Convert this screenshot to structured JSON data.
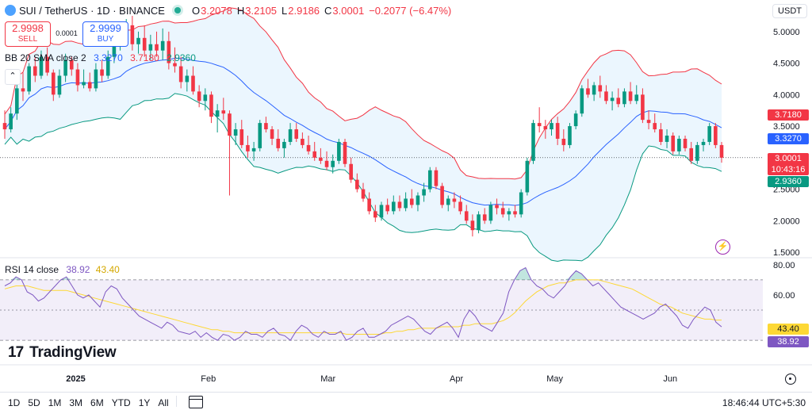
{
  "header": {
    "symbol": "SUI / TetherUS · 1D · BINANCE",
    "open_label": "O",
    "open": "3.2078",
    "high_label": "H",
    "high": "3.2105",
    "low_label": "L",
    "low": "2.9186",
    "close_label": "C",
    "close": "3.0001",
    "change": "−0.2077 (−6.47%)"
  },
  "trade": {
    "sell_price": "2.9998",
    "sell_label": "SELL",
    "buy_price": "2.9999",
    "buy_label": "BUY",
    "spread": "0.0001"
  },
  "indicator": {
    "name": "BB 20 SMA close 2",
    "basis": "3.3270",
    "upper": "3.7180",
    "lower": "2.9360"
  },
  "rsi_legend": {
    "name": "RSI 14 close",
    "value": "38.92",
    "ma": "43.40"
  },
  "currency": "USDT",
  "price_tags": {
    "upper": "3.7180",
    "basis": "3.3270",
    "last": "3.0001",
    "countdown": "10:43:16",
    "lower": "2.9360"
  },
  "rsi_tags": {
    "ma": "43.40",
    "value": "38.92"
  },
  "logo": "TradingView",
  "ranges": [
    "1D",
    "5D",
    "1M",
    "3M",
    "6M",
    "YTD",
    "1Y",
    "All"
  ],
  "clock": "18:46:44 UTC+5:30",
  "colors": {
    "up": "#089981",
    "down": "#f23645",
    "basis": "#2962ff",
    "band_upper": "#f23645",
    "band_lower": "#089981",
    "band_fill": "#e3f2fd",
    "rsi": "#7e57c2",
    "rsi_ma": "#fdd835"
  },
  "chart_data": [
    {
      "type": "candlestick",
      "title": "",
      "x_ticks": [
        "2025",
        "Feb",
        "Mar",
        "Apr",
        "May",
        "Jun"
      ],
      "y_ticks": [
        "1.5000",
        "2.0000",
        "2.5000",
        "3.0000",
        "3.5000",
        "4.0000",
        "4.5000",
        "5.0000"
      ],
      "ylim": [
        1.45,
        5.25
      ],
      "ohlc": [
        [
          3.55,
          3.75,
          3.3,
          3.45
        ],
        [
          3.45,
          3.8,
          3.4,
          3.7
        ],
        [
          3.7,
          4.2,
          3.6,
          4.1
        ],
        [
          4.1,
          4.35,
          3.9,
          4.05
        ],
        [
          4.05,
          4.5,
          4.0,
          4.45
        ],
        [
          4.45,
          4.6,
          4.2,
          4.3
        ],
        [
          4.3,
          4.7,
          4.25,
          4.6
        ],
        [
          4.6,
          4.75,
          4.3,
          4.35
        ],
        [
          4.35,
          4.4,
          3.9,
          4.0
        ],
        [
          4.0,
          4.4,
          3.95,
          4.3
        ],
        [
          4.3,
          4.65,
          4.2,
          4.55
        ],
        [
          4.55,
          4.6,
          4.3,
          4.4
        ],
        [
          4.4,
          4.5,
          4.05,
          4.15
        ],
        [
          4.15,
          4.4,
          4.1,
          4.2
        ],
        [
          4.2,
          4.35,
          4.05,
          4.1
        ],
        [
          4.1,
          4.5,
          4.05,
          4.4
        ],
        [
          4.4,
          4.55,
          4.2,
          4.3
        ],
        [
          4.3,
          4.7,
          4.25,
          4.6
        ],
        [
          4.6,
          4.9,
          4.5,
          4.8
        ],
        [
          4.8,
          5.05,
          4.7,
          4.95
        ],
        [
          4.95,
          5.2,
          4.8,
          5.1
        ],
        [
          5.1,
          5.25,
          4.7,
          4.8
        ],
        [
          4.8,
          5.0,
          4.65,
          4.9
        ],
        [
          4.9,
          5.1,
          4.6,
          4.7
        ],
        [
          4.7,
          4.95,
          4.55,
          4.8
        ],
        [
          4.8,
          5.0,
          4.6,
          4.7
        ],
        [
          4.7,
          5.05,
          4.55,
          4.85
        ],
        [
          4.85,
          5.0,
          4.4,
          4.5
        ],
        [
          4.5,
          4.75,
          4.35,
          4.45
        ],
        [
          4.45,
          4.6,
          4.1,
          4.2
        ],
        [
          4.2,
          4.4,
          4.05,
          4.3
        ],
        [
          4.3,
          4.45,
          4.0,
          4.05
        ],
        [
          4.05,
          4.15,
          3.8,
          3.9
        ],
        [
          3.9,
          4.1,
          3.75,
          4.0
        ],
        [
          4.0,
          4.05,
          3.55,
          3.65
        ],
        [
          3.65,
          3.85,
          3.4,
          3.75
        ],
        [
          3.75,
          3.95,
          3.6,
          3.7
        ],
        [
          3.7,
          3.75,
          2.4,
          3.35
        ],
        [
          3.35,
          3.55,
          3.2,
          3.45
        ],
        [
          3.45,
          3.6,
          3.15,
          3.2
        ],
        [
          3.2,
          3.35,
          3.0,
          3.1
        ],
        [
          3.1,
          3.25,
          2.95,
          3.15
        ],
        [
          3.15,
          3.6,
          3.1,
          3.55
        ],
        [
          3.55,
          3.65,
          3.4,
          3.45
        ],
        [
          3.45,
          3.5,
          3.2,
          3.3
        ],
        [
          3.3,
          3.45,
          3.1,
          3.15
        ],
        [
          3.15,
          3.3,
          3.0,
          3.25
        ],
        [
          3.25,
          3.55,
          3.2,
          3.45
        ],
        [
          3.45,
          3.55,
          3.25,
          3.3
        ],
        [
          3.3,
          3.4,
          3.15,
          3.2
        ],
        [
          3.2,
          3.35,
          3.05,
          3.1
        ],
        [
          3.1,
          3.25,
          2.95,
          3.0
        ],
        [
          3.0,
          3.15,
          2.9,
          2.95
        ],
        [
          2.95,
          3.1,
          2.8,
          2.85
        ],
        [
          2.85,
          3.05,
          2.75,
          2.95
        ],
        [
          2.95,
          3.3,
          2.9,
          3.25
        ],
        [
          3.25,
          3.3,
          2.85,
          2.9
        ],
        [
          2.9,
          3.0,
          2.6,
          2.65
        ],
        [
          2.65,
          2.75,
          2.45,
          2.5
        ],
        [
          2.5,
          2.6,
          2.3,
          2.35
        ],
        [
          2.35,
          2.45,
          2.1,
          2.15
        ],
        [
          2.15,
          2.25,
          1.98,
          2.05
        ],
        [
          2.05,
          2.3,
          2.0,
          2.25
        ],
        [
          2.25,
          2.35,
          2.1,
          2.15
        ],
        [
          2.15,
          2.4,
          2.1,
          2.3
        ],
        [
          2.3,
          2.4,
          2.15,
          2.2
        ],
        [
          2.2,
          2.45,
          2.15,
          2.35
        ],
        [
          2.35,
          2.5,
          2.2,
          2.25
        ],
        [
          2.25,
          2.45,
          2.15,
          2.4
        ],
        [
          2.4,
          2.6,
          2.3,
          2.5
        ],
        [
          2.5,
          2.85,
          2.45,
          2.8
        ],
        [
          2.8,
          2.85,
          2.5,
          2.55
        ],
        [
          2.55,
          2.6,
          2.2,
          2.25
        ],
        [
          2.25,
          2.4,
          2.15,
          2.35
        ],
        [
          2.35,
          2.45,
          2.2,
          2.3
        ],
        [
          2.3,
          2.4,
          2.1,
          2.15
        ],
        [
          2.15,
          2.25,
          1.95,
          2.0
        ],
        [
          2.0,
          2.1,
          1.75,
          1.85
        ],
        [
          1.85,
          2.15,
          1.8,
          2.1
        ],
        [
          2.1,
          2.2,
          1.95,
          2.0
        ],
        [
          2.0,
          2.3,
          1.95,
          2.25
        ],
        [
          2.25,
          2.35,
          2.1,
          2.2
        ],
        [
          2.2,
          2.3,
          2.05,
          2.1
        ],
        [
          2.1,
          2.2,
          2.0,
          2.15
        ],
        [
          2.15,
          2.25,
          2.05,
          2.1
        ],
        [
          2.1,
          2.5,
          2.05,
          2.45
        ],
        [
          2.45,
          3.0,
          2.4,
          2.95
        ],
        [
          2.95,
          3.6,
          2.9,
          3.55
        ],
        [
          3.55,
          3.8,
          3.4,
          3.5
        ],
        [
          3.5,
          3.6,
          3.3,
          3.45
        ],
        [
          3.45,
          3.6,
          3.35,
          3.55
        ],
        [
          3.55,
          3.65,
          3.2,
          3.3
        ],
        [
          3.3,
          3.45,
          3.1,
          3.2
        ],
        [
          3.2,
          3.55,
          3.15,
          3.5
        ],
        [
          3.5,
          3.75,
          3.45,
          3.7
        ],
        [
          3.7,
          4.15,
          3.65,
          4.1
        ],
        [
          4.1,
          4.25,
          3.95,
          4.0
        ],
        [
          4.0,
          4.2,
          3.9,
          4.15
        ],
        [
          4.15,
          4.3,
          3.95,
          4.05
        ],
        [
          4.05,
          4.15,
          3.85,
          3.9
        ],
        [
          3.9,
          4.05,
          3.75,
          3.95
        ],
        [
          3.95,
          4.1,
          3.8,
          3.85
        ],
        [
          3.85,
          4.1,
          3.8,
          4.05
        ],
        [
          4.05,
          4.2,
          3.85,
          3.9
        ],
        [
          3.9,
          4.15,
          3.85,
          4.0
        ],
        [
          4.0,
          4.1,
          3.55,
          3.6
        ],
        [
          3.6,
          3.75,
          3.45,
          3.55
        ],
        [
          3.55,
          3.7,
          3.4,
          3.45
        ],
        [
          3.45,
          3.55,
          3.2,
          3.25
        ],
        [
          3.25,
          3.45,
          3.15,
          3.35
        ],
        [
          3.35,
          3.4,
          3.05,
          3.1
        ],
        [
          3.1,
          3.35,
          3.05,
          3.3
        ],
        [
          3.3,
          3.35,
          3.1,
          3.15
        ],
        [
          3.15,
          3.25,
          2.9,
          2.95
        ],
        [
          2.95,
          3.25,
          2.9,
          3.2
        ],
        [
          3.2,
          3.3,
          3.1,
          3.25
        ],
        [
          3.25,
          3.55,
          3.2,
          3.5
        ],
        [
          3.5,
          3.55,
          3.15,
          3.2
        ],
        [
          3.2,
          3.25,
          2.92,
          3.0
        ]
      ],
      "bollinger": {
        "period": 20,
        "basis": 3.327,
        "upper": 3.718,
        "lower": 2.936
      },
      "last_price": 3.0001
    },
    {
      "type": "line",
      "title": "",
      "y_ticks": [
        "60.00",
        "80.00"
      ],
      "ylim": [
        18,
        82
      ],
      "bands": [
        30,
        70
      ],
      "series": [
        {
          "name": "RSI 14 close",
          "values": [
            66,
            68,
            72,
            70,
            62,
            60,
            56,
            58,
            62,
            66,
            70,
            72,
            66,
            60,
            58,
            60,
            56,
            52,
            62,
            66,
            64,
            58,
            54,
            50,
            46,
            44,
            42,
            40,
            38,
            42,
            40,
            36,
            35,
            34,
            36,
            32,
            35,
            32,
            30,
            34,
            33,
            30,
            32,
            36,
            34,
            34,
            32,
            36,
            38,
            34,
            33,
            30,
            36,
            40,
            38,
            34,
            32,
            36,
            34,
            34,
            36,
            30,
            32,
            36,
            38,
            32,
            32,
            34,
            36,
            40,
            42,
            44,
            46,
            44,
            40,
            36,
            34,
            38,
            40,
            42,
            38,
            32,
            44,
            50,
            46,
            40,
            38,
            36,
            42,
            48,
            62,
            70,
            76,
            78,
            70,
            66,
            64,
            60,
            58,
            62,
            66,
            72,
            76,
            74,
            70,
            66,
            68,
            64,
            60,
            56,
            52,
            50,
            48,
            46,
            44,
            46,
            48,
            52,
            54,
            50,
            46,
            40,
            38,
            44,
            48,
            52,
            50,
            42,
            38.92
          ]
        },
        {
          "name": "RSI MA",
          "values": [
            64,
            65,
            66,
            66,
            66,
            65,
            64,
            63,
            63,
            63,
            63,
            63,
            62,
            61,
            60,
            59,
            58,
            57,
            56,
            55,
            54,
            53,
            52,
            51,
            50,
            49,
            48,
            47,
            46,
            45,
            44,
            43,
            42,
            41,
            40,
            39,
            38,
            37,
            37,
            36,
            36,
            35,
            35,
            35,
            35,
            35,
            35,
            35,
            35,
            35,
            35,
            35,
            35,
            35,
            35,
            35,
            35,
            35,
            35,
            35,
            35,
            34,
            34,
            34,
            34,
            34,
            34,
            34,
            35,
            35,
            36,
            36,
            37,
            37,
            38,
            38,
            38,
            38,
            39,
            39,
            39,
            39,
            40,
            40,
            41,
            41,
            41,
            41,
            42,
            43,
            45,
            48,
            52,
            56,
            59,
            62,
            64,
            66,
            67,
            68,
            68,
            69,
            70,
            70,
            70,
            70,
            70,
            69,
            68,
            67,
            66,
            65,
            64,
            62,
            60,
            58,
            56,
            54,
            53,
            52,
            50,
            48,
            47,
            46,
            45,
            44,
            44,
            43.4,
            43.4
          ]
        }
      ],
      "value_label": "38.92",
      "ma_label": "43.40"
    }
  ]
}
